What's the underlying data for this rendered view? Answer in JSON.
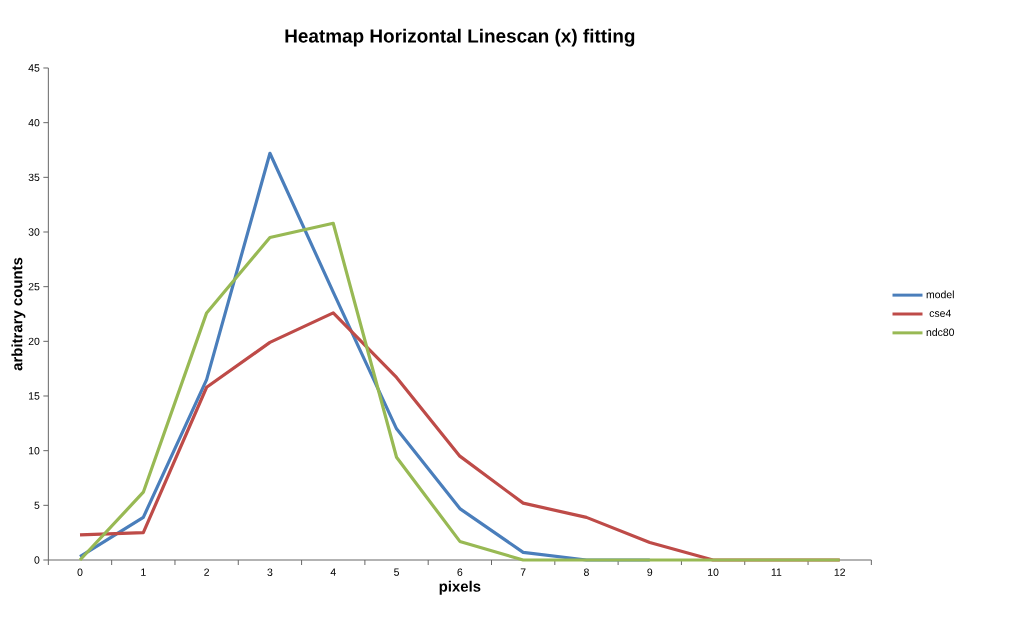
{
  "chart_data": {
    "type": "line",
    "title": "Heatmap Horizontal Linescan (x) fitting",
    "xlabel": "pixels",
    "ylabel": "arbitrary counts",
    "categories": [
      "0",
      "1",
      "2",
      "3",
      "4",
      "5",
      "6",
      "7",
      "8",
      "9",
      "10",
      "11",
      "12"
    ],
    "series": [
      {
        "name": "model",
        "color": "#4a7ebb",
        "values": [
          0.3,
          3.9,
          16.5,
          37.2,
          24.5,
          12,
          4.7,
          0.7,
          0,
          0,
          null,
          null,
          null
        ]
      },
      {
        "name": "cse4",
        "color": "#be4b48",
        "values": [
          2.3,
          2.5,
          15.8,
          19.9,
          22.6,
          16.7,
          9.5,
          5.2,
          3.9,
          1.6,
          0,
          0,
          0
        ]
      },
      {
        "name": "ndc80",
        "color": "#98b954",
        "values": [
          0,
          6.2,
          22.6,
          29.5,
          30.8,
          9.4,
          1.7,
          0,
          0,
          0,
          0,
          0,
          0
        ]
      }
    ],
    "ylim": [
      0,
      45
    ],
    "yticks": [
      0,
      5,
      10,
      15,
      20,
      25,
      30,
      35,
      40,
      45
    ],
    "legend": "right",
    "grid": false,
    "marker": "none",
    "line_style": "solid"
  }
}
